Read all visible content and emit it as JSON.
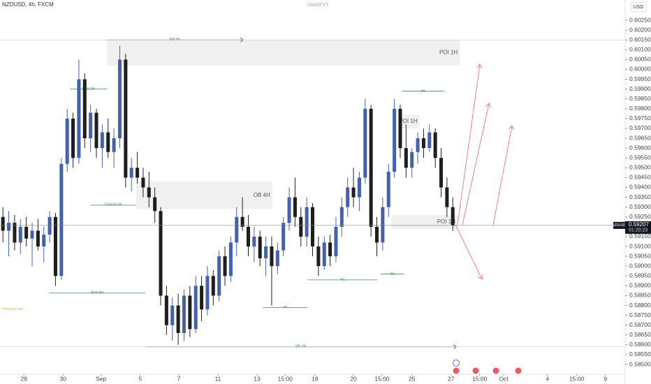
{
  "chart_data": {
    "type": "candlestick",
    "title": "NZDUSD, 4h, FXCM",
    "watermark": "UbaidFXT",
    "currency": "USD",
    "up_color": "#4561ad",
    "down_color": "#1e1e1e",
    "xlim": [
      0,
      107
    ],
    "ylim": [
      0.58454,
      0.60353
    ],
    "xticks": [
      {
        "value": 4.1,
        "label": "28"
      },
      {
        "value": 10.8,
        "label": "30"
      },
      {
        "value": 17.3,
        "label": "Sep"
      },
      {
        "value": 24,
        "label": "5"
      },
      {
        "value": 30.6,
        "label": "7"
      },
      {
        "value": 37.3,
        "label": "11"
      },
      {
        "value": 44,
        "label": "13"
      },
      {
        "value": 48.8,
        "label": "15:00"
      },
      {
        "value": 53.9,
        "label": "18"
      },
      {
        "value": 60.5,
        "label": "20"
      },
      {
        "value": 65.4,
        "label": "15:00"
      },
      {
        "value": 70.5,
        "label": "25"
      },
      {
        "value": 77.2,
        "label": "27"
      },
      {
        "value": 82.1,
        "label": "15:00"
      },
      {
        "value": 86.2,
        "label": "Oct"
      },
      {
        "value": 93.7,
        "label": "4"
      },
      {
        "value": 98.7,
        "label": "15:00"
      },
      {
        "value": 103.6,
        "label": "9"
      }
    ],
    "yticks": [
      {
        "value": 0.6025,
        "label": "0.60250"
      },
      {
        "value": 0.602,
        "label": "0.60200"
      },
      {
        "value": 0.6015,
        "label": "0.60150"
      },
      {
        "value": 0.601,
        "label": "0.60100"
      },
      {
        "value": 0.6005,
        "label": "0.60050"
      },
      {
        "value": 0.6,
        "label": "0.60000"
      },
      {
        "value": 0.5995,
        "label": "0.59950"
      },
      {
        "value": 0.599,
        "label": "0.59900"
      },
      {
        "value": 0.5985,
        "label": "0.59850"
      },
      {
        "value": 0.598,
        "label": "0.59800"
      },
      {
        "value": 0.5975,
        "label": "0.59750"
      },
      {
        "value": 0.597,
        "label": "0.59700"
      },
      {
        "value": 0.5965,
        "label": "0.59650"
      },
      {
        "value": 0.596,
        "label": "0.59600"
      },
      {
        "value": 0.5955,
        "label": "0.59550"
      },
      {
        "value": 0.595,
        "label": "0.59500"
      },
      {
        "value": 0.5945,
        "label": "0.59450"
      },
      {
        "value": 0.594,
        "label": "0.59400"
      },
      {
        "value": 0.5935,
        "label": "0.59350"
      },
      {
        "value": 0.593,
        "label": "0.59300"
      },
      {
        "value": 0.5925,
        "label": "0.59250"
      },
      {
        "value": 0.5915,
        "label": "0.59150"
      },
      {
        "value": 0.591,
        "label": "0.59100"
      },
      {
        "value": 0.5905,
        "label": "0.59050"
      },
      {
        "value": 0.59,
        "label": "0.59000"
      },
      {
        "value": 0.5895,
        "label": "0.58950"
      },
      {
        "value": 0.589,
        "label": "0.58900"
      },
      {
        "value": 0.5885,
        "label": "0.58850"
      },
      {
        "value": 0.588,
        "label": "0.58800"
      },
      {
        "value": 0.5875,
        "label": "0.58750"
      },
      {
        "value": 0.587,
        "label": "0.58700"
      },
      {
        "value": 0.5865,
        "label": "0.58650"
      },
      {
        "value": 0.586,
        "label": "0.58600"
      },
      {
        "value": 0.5855,
        "label": "0.58550"
      },
      {
        "value": 0.585,
        "label": "0.58500"
      }
    ],
    "candles": [
      [
        0.5925,
        0.593,
        0.5912,
        0.5918
      ],
      [
        0.5918,
        0.5928,
        0.5905,
        0.5922
      ],
      [
        0.5922,
        0.5926,
        0.5908,
        0.5912
      ],
      [
        0.5912,
        0.5924,
        0.5906,
        0.592
      ],
      [
        0.592,
        0.5925,
        0.591,
        0.5914
      ],
      [
        0.5914,
        0.5922,
        0.59,
        0.5918
      ],
      [
        0.5918,
        0.5924,
        0.5908,
        0.591
      ],
      [
        0.591,
        0.592,
        0.5902,
        0.5916
      ],
      [
        0.5916,
        0.5928,
        0.5912,
        0.5925
      ],
      [
        0.5925,
        0.5927,
        0.589,
        0.5895
      ],
      [
        0.5895,
        0.5955,
        0.5893,
        0.5952
      ],
      [
        0.5952,
        0.598,
        0.5948,
        0.5975
      ],
      [
        0.5975,
        0.5978,
        0.595,
        0.5955
      ],
      [
        0.5955,
        0.6005,
        0.5952,
        0.5995
      ],
      [
        0.5995,
        0.5998,
        0.596,
        0.5965
      ],
      [
        0.5965,
        0.5982,
        0.5958,
        0.5978
      ],
      [
        0.5978,
        0.598,
        0.5955,
        0.596
      ],
      [
        0.596,
        0.5972,
        0.595,
        0.5968
      ],
      [
        0.5968,
        0.5975,
        0.5955,
        0.5958
      ],
      [
        0.5958,
        0.597,
        0.595,
        0.5965
      ],
      [
        0.5965,
        0.6012,
        0.596,
        0.6005
      ],
      [
        0.6005,
        0.6008,
        0.594,
        0.5945
      ],
      [
        0.5945,
        0.5955,
        0.5938,
        0.595
      ],
      [
        0.595,
        0.5958,
        0.5942,
        0.5945
      ],
      [
        0.5945,
        0.595,
        0.5935,
        0.594
      ],
      [
        0.594,
        0.5948,
        0.593,
        0.5935
      ],
      [
        0.5935,
        0.594,
        0.5922,
        0.5928
      ],
      [
        0.5928,
        0.593,
        0.588,
        0.5885
      ],
      [
        0.5885,
        0.589,
        0.5865,
        0.587
      ],
      [
        0.587,
        0.5884,
        0.5862,
        0.588
      ],
      [
        0.588,
        0.5886,
        0.586,
        0.5866
      ],
      [
        0.5866,
        0.5888,
        0.5862,
        0.5885
      ],
      [
        0.5885,
        0.589,
        0.5864,
        0.5868
      ],
      [
        0.5868,
        0.5895,
        0.5866,
        0.589
      ],
      [
        0.589,
        0.5895,
        0.5872,
        0.5878
      ],
      [
        0.5878,
        0.59,
        0.5875,
        0.5895
      ],
      [
        0.5895,
        0.5898,
        0.588,
        0.5885
      ],
      [
        0.5885,
        0.5908,
        0.5882,
        0.5905
      ],
      [
        0.5905,
        0.591,
        0.589,
        0.5895
      ],
      [
        0.5895,
        0.5915,
        0.5892,
        0.5912
      ],
      [
        0.5912,
        0.593,
        0.5905,
        0.5925
      ],
      [
        0.5925,
        0.5935,
        0.5918,
        0.592
      ],
      [
        0.592,
        0.5926,
        0.5905,
        0.591
      ],
      [
        0.591,
        0.592,
        0.5902,
        0.5915
      ],
      [
        0.5915,
        0.5918,
        0.59,
        0.5904
      ],
      [
        0.5904,
        0.5915,
        0.5895,
        0.591
      ],
      [
        0.591,
        0.5915,
        0.588,
        0.59
      ],
      [
        0.59,
        0.5912,
        0.5896,
        0.5908
      ],
      [
        0.5908,
        0.5925,
        0.5905,
        0.5922
      ],
      [
        0.5922,
        0.594,
        0.5918,
        0.5935
      ],
      [
        0.5935,
        0.5945,
        0.592,
        0.5925
      ],
      [
        0.5925,
        0.593,
        0.591,
        0.5915
      ],
      [
        0.5915,
        0.5935,
        0.591,
        0.593
      ],
      [
        0.593,
        0.5932,
        0.5905,
        0.591
      ],
      [
        0.591,
        0.5915,
        0.5895,
        0.59
      ],
      [
        0.59,
        0.5915,
        0.5898,
        0.5912
      ],
      [
        0.5912,
        0.5916,
        0.59,
        0.5905
      ],
      [
        0.5905,
        0.5925,
        0.5902,
        0.592
      ],
      [
        0.592,
        0.5935,
        0.5915,
        0.593
      ],
      [
        0.593,
        0.5945,
        0.5925,
        0.594
      ],
      [
        0.594,
        0.595,
        0.593,
        0.5935
      ],
      [
        0.5935,
        0.5948,
        0.5928,
        0.5945
      ],
      [
        0.5945,
        0.5985,
        0.5942,
        0.598
      ],
      [
        0.598,
        0.5982,
        0.5915,
        0.592
      ],
      [
        0.592,
        0.5925,
        0.5905,
        0.5912
      ],
      [
        0.5912,
        0.5935,
        0.5908,
        0.593
      ],
      [
        0.593,
        0.5952,
        0.5925,
        0.5948
      ],
      [
        0.5948,
        0.5985,
        0.5945,
        0.598
      ],
      [
        0.598,
        0.5982,
        0.5955,
        0.596
      ],
      [
        0.596,
        0.5972,
        0.5945,
        0.595
      ],
      [
        0.595,
        0.596,
        0.5945,
        0.5958
      ],
      [
        0.5958,
        0.5968,
        0.5952,
        0.5965
      ],
      [
        0.5965,
        0.597,
        0.5955,
        0.596
      ],
      [
        0.596,
        0.5972,
        0.5958,
        0.5968
      ],
      [
        0.5968,
        0.597,
        0.595,
        0.5955
      ],
      [
        0.5955,
        0.596,
        0.5935,
        0.594
      ],
      [
        0.594,
        0.5945,
        0.5925,
        0.593
      ],
      [
        0.593,
        0.5935,
        0.5918,
        0.59207
      ]
    ],
    "zones": [
      {
        "label": "POI 1H",
        "top": 0.6015,
        "bottom": 0.6002,
        "x": [
          18.3,
          78.7
        ]
      },
      {
        "label": "OB 4H",
        "top": 0.5943,
        "bottom": 0.5929,
        "x": [
          23.3,
          46.6
        ]
      },
      {
        "label": "POI 1H",
        "top": 0.5977,
        "bottom": 0.597,
        "x": [
          68.8,
          71.8
        ]
      },
      {
        "label": "POI 1H",
        "top": 0.5926,
        "bottom": 0.5919,
        "x": [
          67,
          78.3
        ]
      }
    ],
    "levels": [
      {
        "label": "BH 4H",
        "price": 0.6015,
        "x": [
          18.3,
          41.6
        ],
        "color": "#3f8a4f",
        "arrow": true
      },
      {
        "label": "BoS 1H",
        "price": 0.599,
        "x": [
          12,
          18.3
        ],
        "color": "#3f8a4f"
      },
      {
        "label": "ChoCH 1H",
        "price": 0.5931,
        "x": [
          15.5,
          23.3
        ],
        "color": "#3f8a4f"
      },
      {
        "label": "BoS 4H",
        "price": 0.58863,
        "x": [
          8.4,
          24.9
        ],
        "color": "#3f8a4f"
      },
      {
        "label": "WL 4H",
        "price": 0.5859,
        "x": [
          24.9,
          78.1
        ],
        "color": "#3f8a4f",
        "arrow": true
      },
      {
        "label": "eq",
        "price": 0.5879,
        "x": [
          45,
          52.6
        ],
        "color": "#3f8a4f"
      },
      {
        "label": "eq",
        "price": 0.5893,
        "x": [
          52.6,
          64.6
        ],
        "color": "#3f8a4f"
      },
      {
        "label": "eq",
        "price": 0.5896,
        "x": [
          65.2,
          69.1
        ],
        "color": "#3f8a4f"
      },
      {
        "label": "eq",
        "price": 0.5989,
        "x": [
          68.8,
          76
        ],
        "color": "#3f8a4f"
      },
      {
        "label": "Previous Low",
        "price": 0.5878,
        "x": [
          0,
          5
        ],
        "color": "#f0a64a"
      }
    ],
    "last_price": 0.59207,
    "symbol": "NZDUSD",
    "countdown": "01:20:23"
  }
}
